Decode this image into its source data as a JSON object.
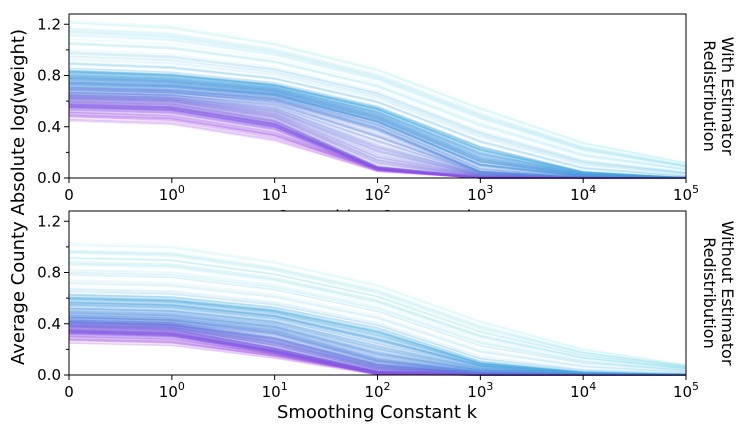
{
  "chart_data": {
    "type": "line",
    "ylabel": "Average County Absolute log(weight)",
    "xlabel": "Smoothing Constant k",
    "x_points": [
      0,
      1,
      10,
      100,
      1000,
      10000,
      100000
    ],
    "x_tick_labels": [
      {
        "base": "0",
        "exp": ""
      },
      {
        "base": "10",
        "exp": "0"
      },
      {
        "base": "10",
        "exp": "1"
      },
      {
        "base": "10",
        "exp": "2"
      },
      {
        "base": "10",
        "exp": "3"
      },
      {
        "base": "10",
        "exp": "4"
      },
      {
        "base": "10",
        "exp": "5"
      }
    ],
    "y_ticks": [
      0.0,
      0.4,
      0.8,
      1.2
    ],
    "y_tick_labels": [
      "0.0",
      "0.4",
      "0.8",
      "1.2"
    ],
    "ylim": [
      0,
      1.28
    ],
    "colors": {
      "low": "#a63fe6",
      "mid": "#5a8fe8",
      "high": "#36d1dc"
    },
    "panels": [
      {
        "side_label": [
          "With Estimator",
          "Redistribution"
        ],
        "hidden_xlabel": "Smoothing Constant k",
        "series_count": 320,
        "band_profiles": [
          {
            "name": "min",
            "values": [
              0.46,
              0.43,
              0.3,
              0.06,
              0.0,
              0.0,
              0.0
            ]
          },
          {
            "name": "low",
            "values": [
              0.6,
              0.58,
              0.45,
              0.08,
              0.0,
              0.0,
              0.0
            ]
          },
          {
            "name": "mid",
            "values": [
              0.7,
              0.68,
              0.62,
              0.4,
              0.05,
              0.0,
              0.0
            ]
          },
          {
            "name": "high",
            "values": [
              0.85,
              0.82,
              0.74,
              0.56,
              0.25,
              0.05,
              0.0
            ]
          },
          {
            "name": "max",
            "values": [
              1.22,
              1.18,
              1.05,
              0.85,
              0.55,
              0.28,
              0.12
            ]
          }
        ]
      },
      {
        "side_label": [
          "Without Estimator",
          "Redistribution"
        ],
        "series_count": 320,
        "band_profiles": [
          {
            "name": "min",
            "values": [
              0.26,
              0.24,
              0.14,
              0.01,
              0.0,
              0.0,
              0.0
            ]
          },
          {
            "name": "low",
            "values": [
              0.37,
              0.35,
              0.2,
              0.02,
              0.0,
              0.0,
              0.0
            ]
          },
          {
            "name": "mid",
            "values": [
              0.45,
              0.43,
              0.34,
              0.12,
              0.02,
              0.0,
              0.0
            ]
          },
          {
            "name": "high",
            "values": [
              0.62,
              0.6,
              0.52,
              0.36,
              0.1,
              0.02,
              0.0
            ]
          },
          {
            "name": "max",
            "values": [
              1.02,
              1.0,
              0.88,
              0.7,
              0.42,
              0.2,
              0.08
            ]
          }
        ]
      }
    ]
  }
}
